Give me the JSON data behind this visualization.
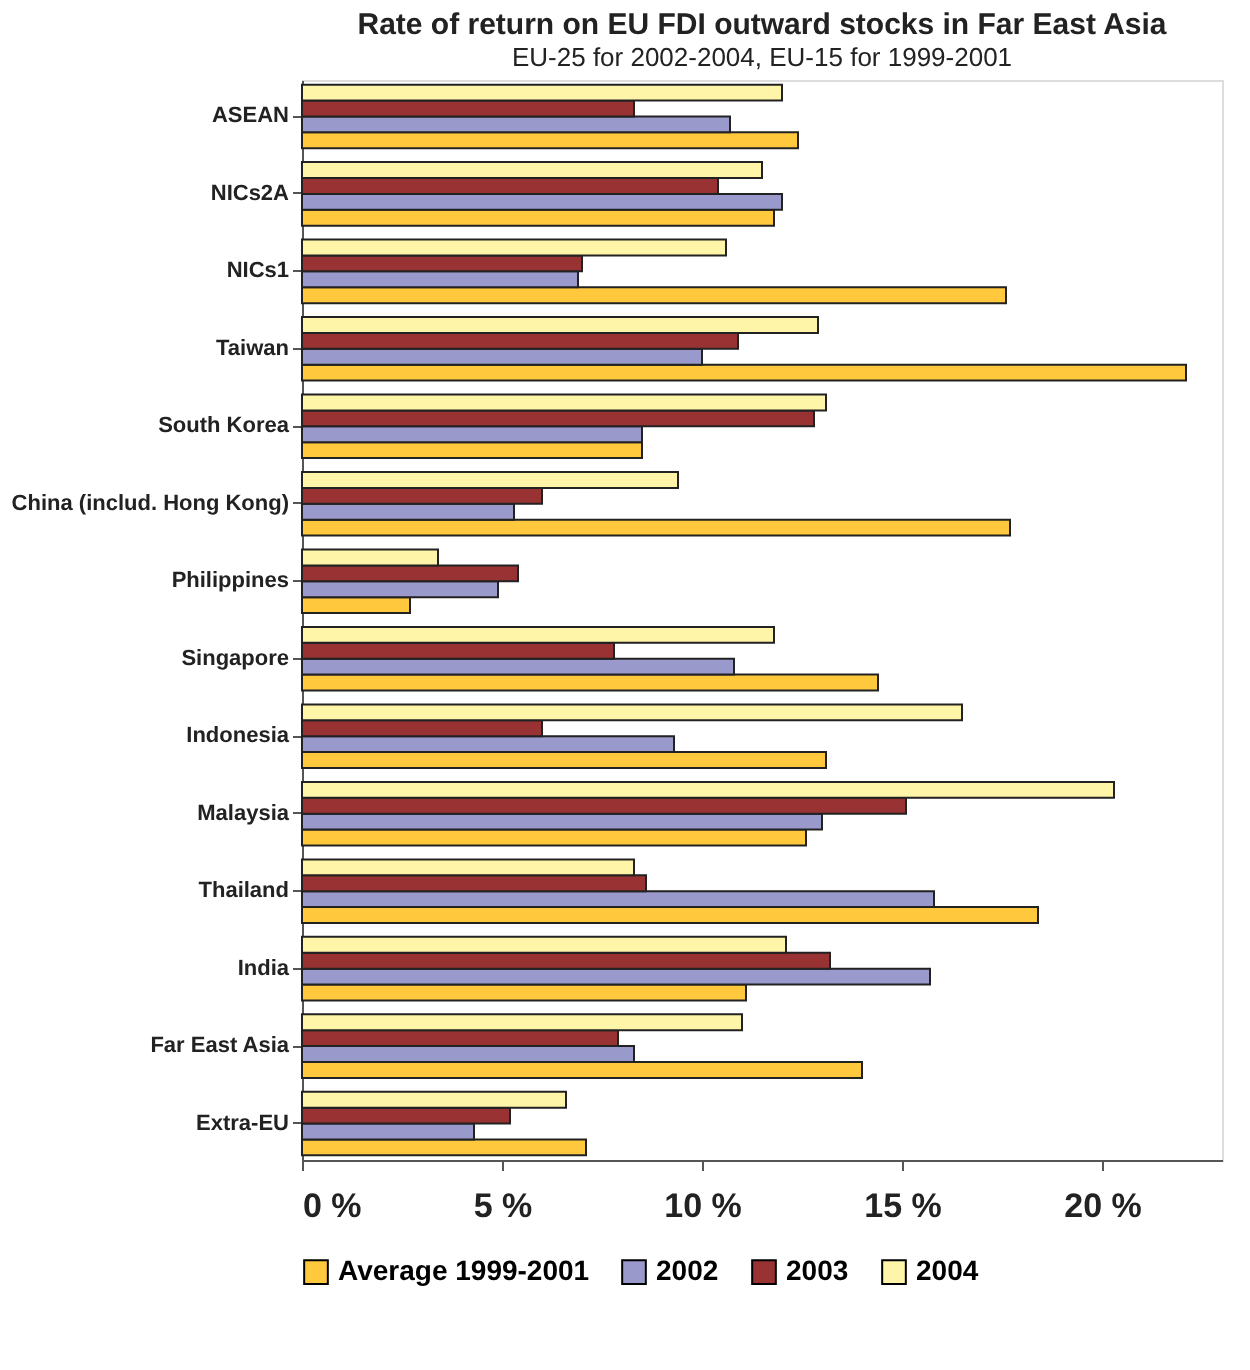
{
  "chart_data": {
    "type": "bar",
    "orientation": "horizontal",
    "title": "Rate of return on EU FDI outward stocks in Far East Asia",
    "subtitle": "EU-25 for 2002-2004, EU-15 for 1999-2001",
    "categories": [
      "ASEAN",
      "NICs2A",
      "NICs1",
      "Taiwan",
      "South Korea",
      "China (includ. Hong Kong)",
      "Philippines",
      "Singapore",
      "Indonesia",
      "Malaysia",
      "Thailand",
      "India",
      "Far East Asia",
      "Extra-EU"
    ],
    "series": [
      {
        "name": "Average 1999-2001",
        "color": "#ffc83d",
        "values": [
          12.4,
          11.8,
          17.6,
          22.1,
          8.5,
          17.7,
          2.7,
          14.4,
          13.1,
          12.6,
          18.4,
          11.1,
          14.0,
          7.1
        ]
      },
      {
        "name": "2002",
        "color": "#9999cc",
        "values": [
          10.7,
          12.0,
          6.9,
          10.0,
          8.5,
          5.3,
          4.9,
          10.8,
          9.3,
          13.0,
          15.8,
          15.7,
          8.3,
          4.3
        ]
      },
      {
        "name": "2003",
        "color": "#993333",
        "values": [
          8.3,
          10.4,
          7.0,
          10.9,
          12.8,
          6.0,
          5.4,
          7.8,
          6.0,
          15.1,
          8.6,
          13.2,
          7.9,
          5.2
        ]
      },
      {
        "name": "2004",
        "color": "#fff5a8",
        "values": [
          12.0,
          11.5,
          10.6,
          12.9,
          13.1,
          9.4,
          3.4,
          11.8,
          16.5,
          20.3,
          8.3,
          12.1,
          11.0,
          6.6
        ]
      }
    ],
    "xlim": [
      0,
      23
    ],
    "xticks": [
      {
        "value": 0,
        "label": "0 %"
      },
      {
        "value": 5,
        "label": "5 %"
      },
      {
        "value": 10,
        "label": "10 %"
      },
      {
        "value": 15,
        "label": "15 %"
      },
      {
        "value": 20,
        "label": "20 %"
      }
    ],
    "grid": false,
    "legend": "bottom"
  }
}
